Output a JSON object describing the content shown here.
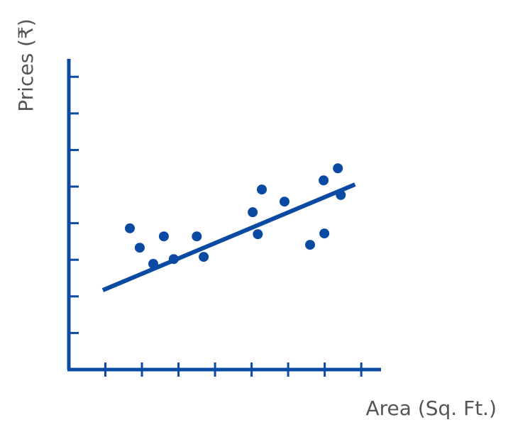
{
  "chart_data": {
    "type": "scatter",
    "x_label": "Area (Sq. Ft.)",
    "y_label": "Prices (₹)",
    "xlim": [
      0,
      8.54
    ],
    "ylim": [
      0,
      8.49
    ],
    "xticks": [
      1,
      2,
      3,
      4,
      5,
      6,
      7,
      8
    ],
    "yticks": [
      1,
      2,
      3,
      4,
      5,
      6,
      7,
      8
    ],
    "color": "#0b4aa2",
    "series": [
      {
        "x": [
          1.67,
          1.94,
          2.31,
          2.6,
          2.87,
          3.5,
          3.69,
          5.03,
          5.17,
          5.28,
          5.9,
          6.6,
          6.97,
          6.99,
          7.36,
          7.44
        ],
        "values": [
          3.86,
          3.33,
          2.89,
          3.64,
          3.02,
          3.64,
          3.08,
          4.3,
          3.7,
          4.92,
          4.59,
          3.41,
          5.17,
          3.72,
          5.5,
          4.77
        ]
      }
    ],
    "trendline": {
      "x": [
        0.93,
        7.83
      ],
      "values": [
        2.17,
        5.06
      ]
    }
  }
}
